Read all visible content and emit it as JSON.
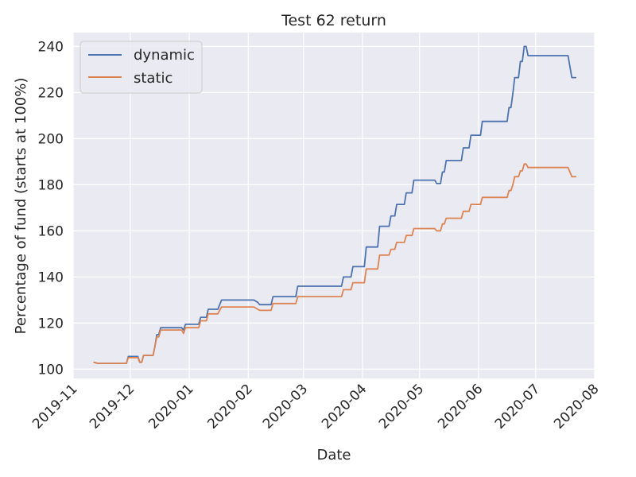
{
  "chart_data": {
    "type": "line",
    "title": "Test 62 return",
    "xlabel": "Date",
    "ylabel": "Percentage of fund (starts at 100%)",
    "grid": true,
    "legend_position": "top-left",
    "xlim": [
      "2019-11-01",
      "2020-08-01"
    ],
    "ylim": [
      96,
      246
    ],
    "x_ticks": [
      "2019-11",
      "2019-12",
      "2020-01",
      "2020-02",
      "2020-03",
      "2020-04",
      "2020-05",
      "2020-06",
      "2020-07",
      "2020-08"
    ],
    "y_ticks": [
      100,
      120,
      140,
      160,
      180,
      200,
      220,
      240
    ],
    "series": [
      {
        "name": "dynamic",
        "color": "#4c72b0",
        "points": [
          [
            "2019-11-12",
            103
          ],
          [
            "2019-11-14",
            102.5
          ],
          [
            "2019-11-29",
            102.5
          ],
          [
            "2019-11-30",
            105.5
          ],
          [
            "2019-12-05",
            105.5
          ],
          [
            "2019-12-06",
            103
          ],
          [
            "2019-12-07",
            103
          ],
          [
            "2019-12-08",
            106
          ],
          [
            "2019-12-13",
            106
          ],
          [
            "2019-12-14",
            110
          ],
          [
            "2019-12-15",
            115
          ],
          [
            "2019-12-16",
            115
          ],
          [
            "2019-12-17",
            118
          ],
          [
            "2019-12-28",
            118
          ],
          [
            "2019-12-29",
            117
          ],
          [
            "2019-12-30",
            119.5
          ],
          [
            "2020-01-06",
            119.5
          ],
          [
            "2020-01-07",
            122.5
          ],
          [
            "2020-01-10",
            122.5
          ],
          [
            "2020-01-11",
            126
          ],
          [
            "2020-01-16",
            126
          ],
          [
            "2020-01-18",
            130
          ],
          [
            "2020-02-04",
            130
          ],
          [
            "2020-02-06",
            129
          ],
          [
            "2020-02-07",
            128
          ],
          [
            "2020-02-13",
            128
          ],
          [
            "2020-02-14",
            131.5
          ],
          [
            "2020-02-26",
            131.5
          ],
          [
            "2020-02-27",
            136
          ],
          [
            "2020-03-21",
            136
          ],
          [
            "2020-03-22",
            140
          ],
          [
            "2020-03-26",
            140
          ],
          [
            "2020-03-27",
            144.5
          ],
          [
            "2020-04-02",
            144.5
          ],
          [
            "2020-04-03",
            153
          ],
          [
            "2020-04-09",
            153
          ],
          [
            "2020-04-10",
            162
          ],
          [
            "2020-04-15",
            162
          ],
          [
            "2020-04-16",
            166.5
          ],
          [
            "2020-04-18",
            166.5
          ],
          [
            "2020-04-19",
            171.5
          ],
          [
            "2020-04-23",
            171.5
          ],
          [
            "2020-04-24",
            176.5
          ],
          [
            "2020-04-27",
            176.5
          ],
          [
            "2020-04-28",
            182
          ],
          [
            "2020-05-09",
            182
          ],
          [
            "2020-05-10",
            180.5
          ],
          [
            "2020-05-12",
            180.5
          ],
          [
            "2020-05-13",
            185.5
          ],
          [
            "2020-05-14",
            185.5
          ],
          [
            "2020-05-15",
            190.5
          ],
          [
            "2020-05-23",
            190.5
          ],
          [
            "2020-05-24",
            196
          ],
          [
            "2020-05-27",
            196
          ],
          [
            "2020-05-28",
            201.5
          ],
          [
            "2020-06-02",
            201.5
          ],
          [
            "2020-06-03",
            207.5
          ],
          [
            "2020-06-16",
            207.5
          ],
          [
            "2020-06-17",
            213.5
          ],
          [
            "2020-06-18",
            213.5
          ],
          [
            "2020-06-19",
            219.5
          ],
          [
            "2020-06-20",
            226.5
          ],
          [
            "2020-06-22",
            226.5
          ],
          [
            "2020-06-23",
            233.5
          ],
          [
            "2020-06-24",
            233.5
          ],
          [
            "2020-06-25",
            240
          ],
          [
            "2020-06-26",
            240
          ],
          [
            "2020-06-27",
            236
          ],
          [
            "2020-07-18",
            236
          ],
          [
            "2020-07-20",
            226.5
          ],
          [
            "2020-07-22",
            226.5
          ]
        ]
      },
      {
        "name": "static",
        "color": "#dd8452",
        "points": [
          [
            "2019-11-12",
            103
          ],
          [
            "2019-11-14",
            102.5
          ],
          [
            "2019-11-29",
            102.5
          ],
          [
            "2019-11-30",
            105
          ],
          [
            "2019-12-05",
            105
          ],
          [
            "2019-12-06",
            103
          ],
          [
            "2019-12-07",
            103
          ],
          [
            "2019-12-08",
            106
          ],
          [
            "2019-12-13",
            106
          ],
          [
            "2019-12-14",
            110
          ],
          [
            "2019-12-15",
            114
          ],
          [
            "2019-12-16",
            114
          ],
          [
            "2019-12-17",
            117
          ],
          [
            "2019-12-28",
            117
          ],
          [
            "2019-12-29",
            115.5
          ],
          [
            "2019-12-30",
            118
          ],
          [
            "2020-01-06",
            118
          ],
          [
            "2020-01-07",
            121
          ],
          [
            "2020-01-10",
            121
          ],
          [
            "2020-01-11",
            124
          ],
          [
            "2020-01-16",
            124
          ],
          [
            "2020-01-18",
            127
          ],
          [
            "2020-02-04",
            127
          ],
          [
            "2020-02-06",
            126
          ],
          [
            "2020-02-07",
            125.5
          ],
          [
            "2020-02-13",
            125.5
          ],
          [
            "2020-02-14",
            128.5
          ],
          [
            "2020-02-26",
            128.5
          ],
          [
            "2020-02-27",
            131.5
          ],
          [
            "2020-03-21",
            131.5
          ],
          [
            "2020-03-22",
            134.5
          ],
          [
            "2020-03-26",
            134.5
          ],
          [
            "2020-03-27",
            137.5
          ],
          [
            "2020-04-02",
            137.5
          ],
          [
            "2020-04-03",
            143.5
          ],
          [
            "2020-04-09",
            143.5
          ],
          [
            "2020-04-10",
            149.5
          ],
          [
            "2020-04-15",
            149.5
          ],
          [
            "2020-04-16",
            152
          ],
          [
            "2020-04-18",
            152
          ],
          [
            "2020-04-19",
            155
          ],
          [
            "2020-04-23",
            155
          ],
          [
            "2020-04-24",
            158
          ],
          [
            "2020-04-27",
            158
          ],
          [
            "2020-04-28",
            161
          ],
          [
            "2020-05-09",
            161
          ],
          [
            "2020-05-10",
            160
          ],
          [
            "2020-05-12",
            160
          ],
          [
            "2020-05-13",
            163
          ],
          [
            "2020-05-14",
            163
          ],
          [
            "2020-05-15",
            165.5
          ],
          [
            "2020-05-23",
            165.5
          ],
          [
            "2020-05-24",
            168.5
          ],
          [
            "2020-05-27",
            168.5
          ],
          [
            "2020-05-28",
            171.5
          ],
          [
            "2020-06-02",
            171.5
          ],
          [
            "2020-06-03",
            174.5
          ],
          [
            "2020-06-16",
            174.5
          ],
          [
            "2020-06-17",
            177.5
          ],
          [
            "2020-06-18",
            177.5
          ],
          [
            "2020-06-19",
            180
          ],
          [
            "2020-06-20",
            183.5
          ],
          [
            "2020-06-22",
            183.5
          ],
          [
            "2020-06-23",
            186
          ],
          [
            "2020-06-24",
            186
          ],
          [
            "2020-06-25",
            189
          ],
          [
            "2020-06-26",
            189
          ],
          [
            "2020-06-27",
            187.5
          ],
          [
            "2020-07-18",
            187.5
          ],
          [
            "2020-07-20",
            183.5
          ],
          [
            "2020-07-22",
            183.5
          ]
        ]
      }
    ]
  }
}
